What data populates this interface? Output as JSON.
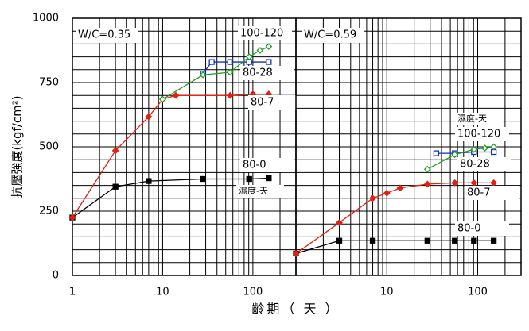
{
  "chart_data": [
    {
      "type": "line",
      "title": "W/C=0.35",
      "y_label": "抗壓強度(kgf/cm²)",
      "x_label": "齡期（ 天 ）",
      "legend_title": "濕度-天",
      "log_x": true,
      "grid": true,
      "xlim": [
        1,
        300
      ],
      "xticks": [
        1,
        10,
        100
      ],
      "xgrid": [
        2,
        3,
        4,
        5,
        6,
        7,
        8,
        9,
        20,
        30,
        40,
        50,
        60,
        70,
        80,
        90,
        200
      ],
      "ylim": [
        0,
        1000
      ],
      "yticks": [
        0,
        250,
        500,
        750,
        1000
      ],
      "ygrid": [
        50,
        100,
        150,
        200,
        250,
        300,
        350,
        400,
        450,
        500,
        550,
        600,
        650,
        700,
        750,
        800,
        850,
        900,
        950
      ],
      "series": [
        {
          "name": "80-0",
          "color": "#000000",
          "marker": "square",
          "x": [
            1,
            3,
            7,
            28,
            91,
            150
          ],
          "values": [
            225,
            345,
            367,
            375,
            375,
            378
          ]
        },
        {
          "name": "80-7",
          "color": "#e02010",
          "marker": "diamond",
          "x": [
            1,
            3,
            7,
            10,
            14,
            56,
            100,
            150
          ],
          "values": [
            225,
            485,
            617,
            685,
            700,
            700,
            705,
            705
          ]
        },
        {
          "name": "80-28",
          "color": "#1030c0",
          "marker": "open-square",
          "x": [
            28,
            35,
            56,
            91,
            150
          ],
          "values": [
            785,
            830,
            830,
            830,
            830
          ]
        },
        {
          "name": "100-120",
          "color": "#20a020",
          "marker": "open-diamond",
          "x": [
            10,
            28,
            56,
            91,
            120,
            150
          ],
          "values": [
            685,
            780,
            790,
            850,
            875,
            890
          ]
        }
      ]
    },
    {
      "type": "line",
      "title": "W/C=0.59",
      "legend_title": "濕度-天",
      "log_x": true,
      "grid": true,
      "xlim": [
        1,
        300
      ],
      "xticks": [
        10,
        100
      ],
      "xgrid": [
        2,
        3,
        4,
        5,
        6,
        7,
        8,
        9,
        20,
        30,
        40,
        50,
        60,
        70,
        80,
        90,
        200
      ],
      "ylim": [
        0,
        1000
      ],
      "ygrid": [
        50,
        100,
        150,
        200,
        250,
        300,
        350,
        400,
        450,
        500,
        550,
        600,
        650,
        700,
        750,
        800,
        850,
        900,
        950
      ],
      "series": [
        {
          "name": "80-0",
          "color": "#000000",
          "marker": "square",
          "x": [
            1,
            3,
            7,
            28,
            56,
            91,
            150
          ],
          "values": [
            85,
            135,
            135,
            135,
            135,
            135,
            135
          ]
        },
        {
          "name": "80-7",
          "color": "#e02010",
          "marker": "diamond",
          "x": [
            1,
            3,
            7,
            10,
            14,
            28,
            56,
            91,
            150
          ],
          "values": [
            85,
            205,
            300,
            320,
            340,
            355,
            360,
            360,
            360
          ]
        },
        {
          "name": "80-28",
          "color": "#1030c0",
          "marker": "open-square",
          "x": [
            35,
            56,
            91,
            150
          ],
          "values": [
            475,
            475,
            480,
            480
          ]
        },
        {
          "name": "100-120",
          "color": "#20a020",
          "marker": "open-diamond",
          "x": [
            28,
            56,
            91,
            120,
            150
          ],
          "values": [
            413,
            470,
            490,
            495,
            500
          ]
        }
      ]
    }
  ]
}
